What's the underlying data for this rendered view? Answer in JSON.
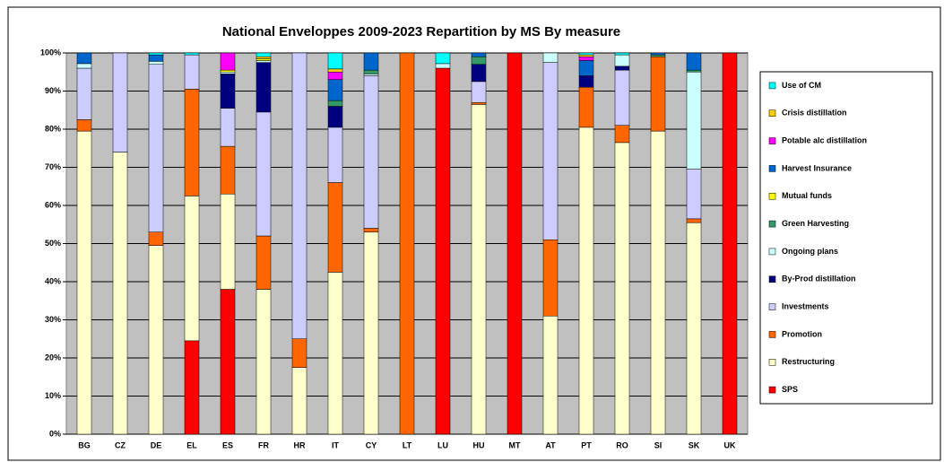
{
  "chart_data": {
    "type": "stacked_bar",
    "title": "National Enveloppes 2009-2023  Repartition by MS By measure",
    "categories": [
      "BG",
      "CZ",
      "DE",
      "EL",
      "ES",
      "FR",
      "HR",
      "IT",
      "CY",
      "LT",
      "LU",
      "HU",
      "MT",
      "AT",
      "PT",
      "RO",
      "SI",
      "SK",
      "UK"
    ],
    "series": [
      {
        "name": "SPS",
        "color": "#FF0000",
        "values": [
          0,
          0,
          0,
          24.5,
          38,
          0,
          0,
          0,
          0,
          0,
          96,
          0,
          100,
          0,
          0,
          0,
          0,
          0,
          100
        ]
      },
      {
        "name": "Restructuring",
        "color": "#FFFFCC",
        "values": [
          79.5,
          74,
          49.5,
          38,
          25,
          38,
          17.5,
          42.5,
          53,
          0,
          0,
          86.5,
          0,
          31,
          80.5,
          76.5,
          79.5,
          55.5,
          0
        ]
      },
      {
        "name": "Promotion",
        "color": "#FF6600",
        "values": [
          3,
          0,
          3.5,
          28,
          12.5,
          14,
          7.5,
          23.5,
          1,
          100,
          0,
          0.5,
          0,
          20,
          10.5,
          4.5,
          19.5,
          1,
          0
        ]
      },
      {
        "name": "Investments",
        "color": "#CCCCFF",
        "values": [
          13.5,
          26,
          44,
          9,
          10,
          32.5,
          75,
          14.5,
          40,
          0,
          0,
          5.5,
          0,
          46.5,
          0,
          14.5,
          0,
          13,
          0
        ]
      },
      {
        "name": "By-Prod distillation",
        "color": "#000080",
        "values": [
          0,
          0,
          0,
          0,
          9,
          13,
          0,
          5.5,
          0,
          0,
          0,
          4.5,
          0,
          0,
          3,
          1,
          0,
          0,
          0
        ]
      },
      {
        "name": "Ongoing plans",
        "color": "#CCFFFF",
        "values": [
          1.2,
          0,
          0.8,
          0,
          0.5,
          0.5,
          0,
          0,
          0.5,
          0,
          1.2,
          0,
          0,
          2.5,
          0,
          3,
          0,
          25.5,
          0
        ]
      },
      {
        "name": "Green Harvesting",
        "color": "#339966",
        "values": [
          0,
          0,
          0,
          0,
          0,
          0,
          0,
          1.5,
          1,
          0,
          0,
          2,
          0,
          0,
          0,
          0,
          0.5,
          0.5,
          0
        ]
      },
      {
        "name": "Mutual funds",
        "color": "#FFFF00",
        "values": [
          0,
          0,
          0,
          0,
          0.5,
          0.5,
          0,
          0,
          0,
          0,
          0,
          0,
          0,
          0,
          0,
          0,
          0,
          0,
          0
        ]
      },
      {
        "name": "Harvest Insurance",
        "color": "#0066CC",
        "values": [
          2.8,
          0,
          1.7,
          0,
          0,
          0,
          0,
          5.5,
          4.5,
          0,
          0,
          1,
          0,
          0,
          4,
          0,
          0.5,
          4.5,
          0
        ]
      },
      {
        "name": "Potable alc distillation",
        "color": "#FF00FF",
        "values": [
          0,
          0,
          0,
          0,
          4.5,
          0,
          0,
          2,
          0,
          0,
          0,
          0,
          0,
          0,
          1,
          0,
          0,
          0,
          0
        ]
      },
      {
        "name": "Crisis distillation",
        "color": "#FFCC00",
        "values": [
          0,
          0,
          0,
          0,
          0,
          0.5,
          0,
          0.8,
          0,
          0,
          0,
          0,
          0,
          0,
          0.5,
          0,
          0,
          0,
          0
        ]
      },
      {
        "name": "Use of CM",
        "color": "#00FFFF",
        "values": [
          0,
          0,
          0.5,
          0.5,
          0,
          1,
          0,
          4.2,
          0,
          0,
          2.8,
          0,
          0,
          0,
          0.5,
          0.5,
          0,
          0,
          0
        ]
      }
    ],
    "ylim": [
      0,
      100
    ],
    "yticks": [
      {
        "value": 0,
        "label": "0%"
      },
      {
        "value": 10,
        "label": "10%"
      },
      {
        "value": 20,
        "label": "20%"
      },
      {
        "value": 30,
        "label": "30%"
      },
      {
        "value": 40,
        "label": "40%"
      },
      {
        "value": 50,
        "label": "50%"
      },
      {
        "value": 60,
        "label": "60%"
      },
      {
        "value": 70,
        "label": "70%"
      },
      {
        "value": 80,
        "label": "80%"
      },
      {
        "value": 90,
        "label": "90%"
      },
      {
        "value": 100,
        "label": "100%"
      }
    ],
    "grid": true,
    "legend": "right"
  }
}
